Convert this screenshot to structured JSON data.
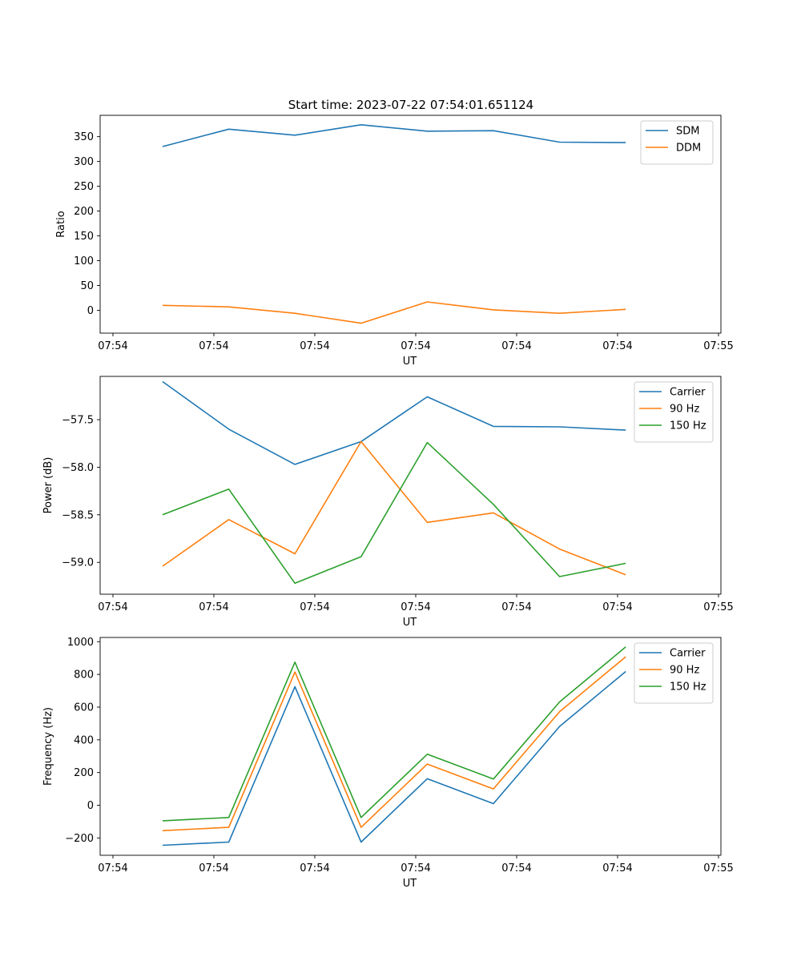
{
  "figure": {
    "title": "Start time: 2023-07-22 07:54:01.651124"
  },
  "chart_data": [
    {
      "type": "line",
      "title": "Start time: 2023-07-22 07:54:01.651124",
      "xlabel": "UT",
      "ylabel": "Ratio",
      "x": [
        1,
        2,
        3,
        4,
        5,
        6,
        7,
        8
      ],
      "xlim": [
        0.8,
        9.2
      ],
      "xticks": [
        1,
        2.5,
        4,
        5.5,
        7,
        8.5,
        10
      ],
      "xtick_values": [
        0,
        1.5,
        3,
        4.5,
        6,
        7.5,
        9
      ],
      "xtick_labels": [
        "07:54",
        "07:54",
        "07:54",
        "07:54",
        "07:54",
        "07:54",
        "07:55"
      ],
      "ylim": [
        -46,
        393
      ],
      "yticks": [
        0,
        50,
        100,
        150,
        200,
        250,
        300,
        350
      ],
      "ytick_labels": [
        "0",
        "50",
        "100",
        "150",
        "200",
        "250",
        "300",
        "350"
      ],
      "legend": "top-right",
      "series": [
        {
          "name": "SDM",
          "color": "#1f77b4",
          "values": [
            330,
            365,
            353,
            374,
            361,
            362,
            339,
            338
          ]
        },
        {
          "name": "DDM",
          "color": "#ff7f0e",
          "values": [
            10,
            7,
            -6,
            -26,
            17,
            1,
            -6,
            2
          ]
        }
      ]
    },
    {
      "type": "line",
      "title": "",
      "xlabel": "UT",
      "ylabel": "Power (dB)",
      "x": [
        1,
        2,
        3,
        4,
        5,
        6,
        7,
        8
      ],
      "xlim": [
        0.8,
        9.2
      ],
      "xtick_values": [
        0,
        1.5,
        3,
        4.5,
        6,
        7.5,
        9
      ],
      "xtick_labels": [
        "07:54",
        "07:54",
        "07:54",
        "07:54",
        "07:54",
        "07:54",
        "07:55"
      ],
      "ylim": [
        -59.335,
        -57.045
      ],
      "yticks": [
        -59.0,
        -58.5,
        -58.0,
        -57.5
      ],
      "ytick_labels": [
        "−59.0",
        "−58.5",
        "−58.0",
        "−57.5"
      ],
      "legend": "top-right",
      "series": [
        {
          "name": "Carrier",
          "color": "#1f77b4",
          "values": [
            -57.1,
            -57.6,
            -57.97,
            -57.73,
            -57.26,
            -57.57,
            -57.575,
            -57.61
          ]
        },
        {
          "name": "90 Hz",
          "color": "#ff7f0e",
          "values": [
            -59.04,
            -58.55,
            -58.91,
            -57.73,
            -58.58,
            -58.48,
            -58.86,
            -59.13
          ]
        },
        {
          "name": "150 Hz",
          "color": "#2ca02c",
          "values": [
            -58.5,
            -58.23,
            -59.22,
            -58.94,
            -57.74,
            -58.39,
            -59.15,
            -59.01
          ]
        }
      ]
    },
    {
      "type": "line",
      "title": "",
      "xlabel": "UT",
      "ylabel": "Frequency (Hz)",
      "x": [
        1,
        2,
        3,
        4,
        5,
        6,
        7,
        8
      ],
      "xlim": [
        0.8,
        9.2
      ],
      "xtick_values": [
        0,
        1.5,
        3,
        4.5,
        6,
        7.5,
        9
      ],
      "xtick_labels": [
        "07:54",
        "07:54",
        "07:54",
        "07:54",
        "07:54",
        "07:54",
        "07:55"
      ],
      "ylim": [
        -306,
        1026
      ],
      "yticks": [
        -200,
        0,
        200,
        400,
        600,
        800,
        1000
      ],
      "ytick_labels": [
        "−200",
        "0",
        "200",
        "400",
        "600",
        "800",
        "1000"
      ],
      "legend": "top-right",
      "series": [
        {
          "name": "Carrier",
          "color": "#1f77b4",
          "values": [
            -245,
            -225,
            725,
            -225,
            162,
            10,
            482,
            818
          ]
        },
        {
          "name": "90 Hz",
          "color": "#ff7f0e",
          "values": [
            -155,
            -135,
            815,
            -135,
            252,
            100,
            572,
            908
          ]
        },
        {
          "name": "150 Hz",
          "color": "#2ca02c",
          "values": [
            -95,
            -75,
            875,
            -75,
            312,
            160,
            632,
            968
          ]
        }
      ]
    }
  ]
}
